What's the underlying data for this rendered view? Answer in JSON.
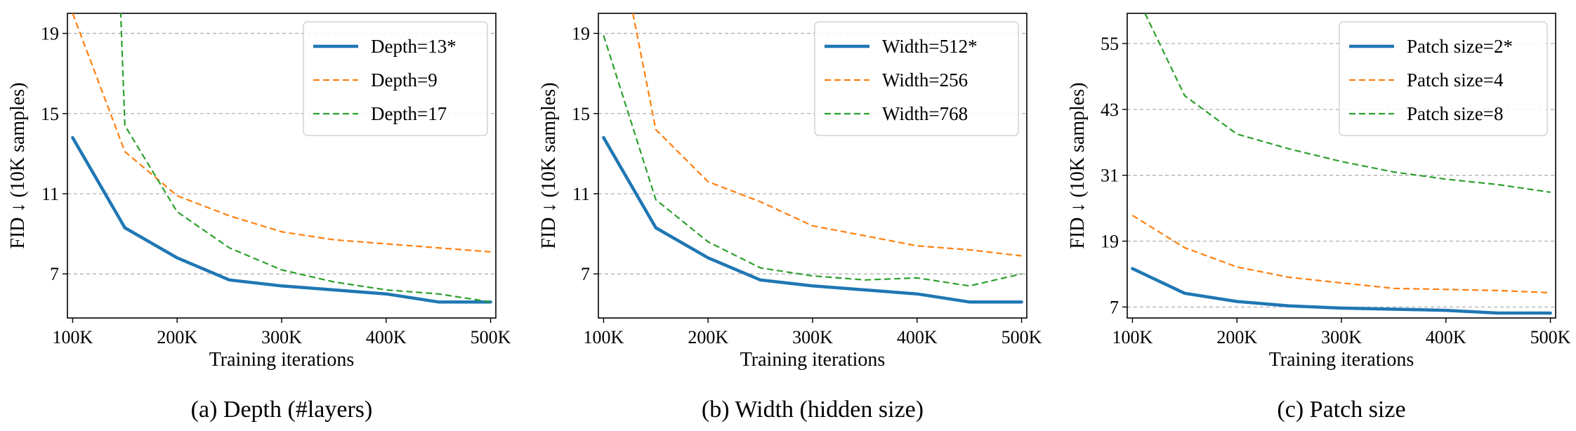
{
  "chart_data": [
    {
      "type": "line",
      "caption": "(a) Depth (#layers)",
      "xlabel": "Training iterations",
      "ylabel": "FID ↓ (10K samples)",
      "x": [
        100000,
        150000,
        200000,
        250000,
        300000,
        350000,
        400000,
        450000,
        500000
      ],
      "xticks": [
        100000,
        200000,
        300000,
        400000,
        500000
      ],
      "xtick_labels": [
        "100K",
        "200K",
        "300K",
        "400K",
        "500K"
      ],
      "yticks": [
        7,
        11,
        15,
        19
      ],
      "xlim": [
        95000,
        505000
      ],
      "ylim": [
        4.8,
        20.0
      ],
      "grid": "horizontal",
      "legend_position": "top-right",
      "series": [
        {
          "name": "Depth=13*",
          "color": "#1f77b4",
          "style": "solid",
          "width": 4.5,
          "values": [
            13.8,
            9.3,
            7.8,
            6.7,
            6.4,
            6.2,
            6.0,
            5.6,
            5.6
          ]
        },
        {
          "name": "Depth=9",
          "color": "#ff7f0e",
          "style": "dashed",
          "width": 2.2,
          "values": [
            20.0,
            13.1,
            10.9,
            9.9,
            9.1,
            8.7,
            8.5,
            8.3,
            8.1
          ]
        },
        {
          "name": "Depth=17",
          "color": "#2ca02c",
          "style": "dashed",
          "width": 2.2,
          "x": [
            144000,
            146000,
            150000,
            200000,
            250000,
            300000,
            350000,
            400000,
            450000,
            500000
          ],
          "values": [
            20.0,
            20.0,
            14.4,
            10.1,
            8.3,
            7.2,
            6.6,
            6.2,
            6.0,
            5.6
          ]
        }
      ]
    },
    {
      "type": "line",
      "caption": "(b) Width (hidden size)",
      "xlabel": "Training iterations",
      "ylabel": "FID ↓ (10K samples)",
      "x": [
        100000,
        150000,
        200000,
        250000,
        300000,
        350000,
        400000,
        450000,
        500000
      ],
      "xticks": [
        100000,
        200000,
        300000,
        400000,
        500000
      ],
      "xtick_labels": [
        "100K",
        "200K",
        "300K",
        "400K",
        "500K"
      ],
      "yticks": [
        7,
        11,
        15,
        19
      ],
      "xlim": [
        95000,
        505000
      ],
      "ylim": [
        4.8,
        20.0
      ],
      "grid": "horizontal",
      "legend_position": "top-right",
      "series": [
        {
          "name": "Width=512*",
          "color": "#1f77b4",
          "style": "solid",
          "width": 4.5,
          "values": [
            13.8,
            9.3,
            7.8,
            6.7,
            6.4,
            6.2,
            6.0,
            5.6,
            5.6
          ]
        },
        {
          "name": "Width=256",
          "color": "#ff7f0e",
          "style": "dashed",
          "width": 2.2,
          "x": [
            128000,
            150000,
            200000,
            250000,
            300000,
            350000,
            400000,
            450000,
            500000
          ],
          "values": [
            20.0,
            14.2,
            11.6,
            10.6,
            9.4,
            8.9,
            8.4,
            8.2,
            7.9
          ]
        },
        {
          "name": "Width=768",
          "color": "#2ca02c",
          "style": "dashed",
          "width": 2.2,
          "values": [
            18.9,
            10.7,
            8.6,
            7.3,
            6.9,
            6.7,
            6.8,
            6.4,
            7.0
          ]
        }
      ]
    },
    {
      "type": "line",
      "caption": "(c) Patch size",
      "xlabel": "Training iterations",
      "ylabel": "FID ↓ (10K samples)",
      "x": [
        100000,
        150000,
        200000,
        250000,
        300000,
        350000,
        400000,
        450000,
        500000
      ],
      "xticks": [
        100000,
        200000,
        300000,
        400000,
        500000
      ],
      "xtick_labels": [
        "100K",
        "200K",
        "300K",
        "400K",
        "500K"
      ],
      "yticks": [
        7,
        19,
        31,
        43,
        55
      ],
      "xlim": [
        95000,
        505000
      ],
      "ylim": [
        5.0,
        60.5
      ],
      "grid": "horizontal",
      "legend_position": "top-right",
      "series": [
        {
          "name": "Patch size=2*",
          "color": "#1f77b4",
          "style": "solid",
          "width": 4.5,
          "values": [
            14.0,
            9.5,
            8.0,
            7.2,
            6.8,
            6.6,
            6.4,
            5.9,
            5.9
          ]
        },
        {
          "name": "Patch size=4",
          "color": "#ff7f0e",
          "style": "dashed",
          "width": 2.2,
          "values": [
            23.7,
            17.8,
            14.3,
            12.4,
            11.4,
            10.4,
            10.2,
            10.0,
            9.6
          ]
        },
        {
          "name": "Patch size=8",
          "color": "#2ca02c",
          "style": "dashed",
          "width": 2.2,
          "x": [
            112000,
            150000,
            200000,
            250000,
            300000,
            350000,
            400000,
            450000,
            500000
          ],
          "values": [
            60.5,
            45.5,
            38.5,
            35.8,
            33.5,
            31.6,
            30.3,
            29.3,
            27.9
          ]
        }
      ]
    }
  ]
}
